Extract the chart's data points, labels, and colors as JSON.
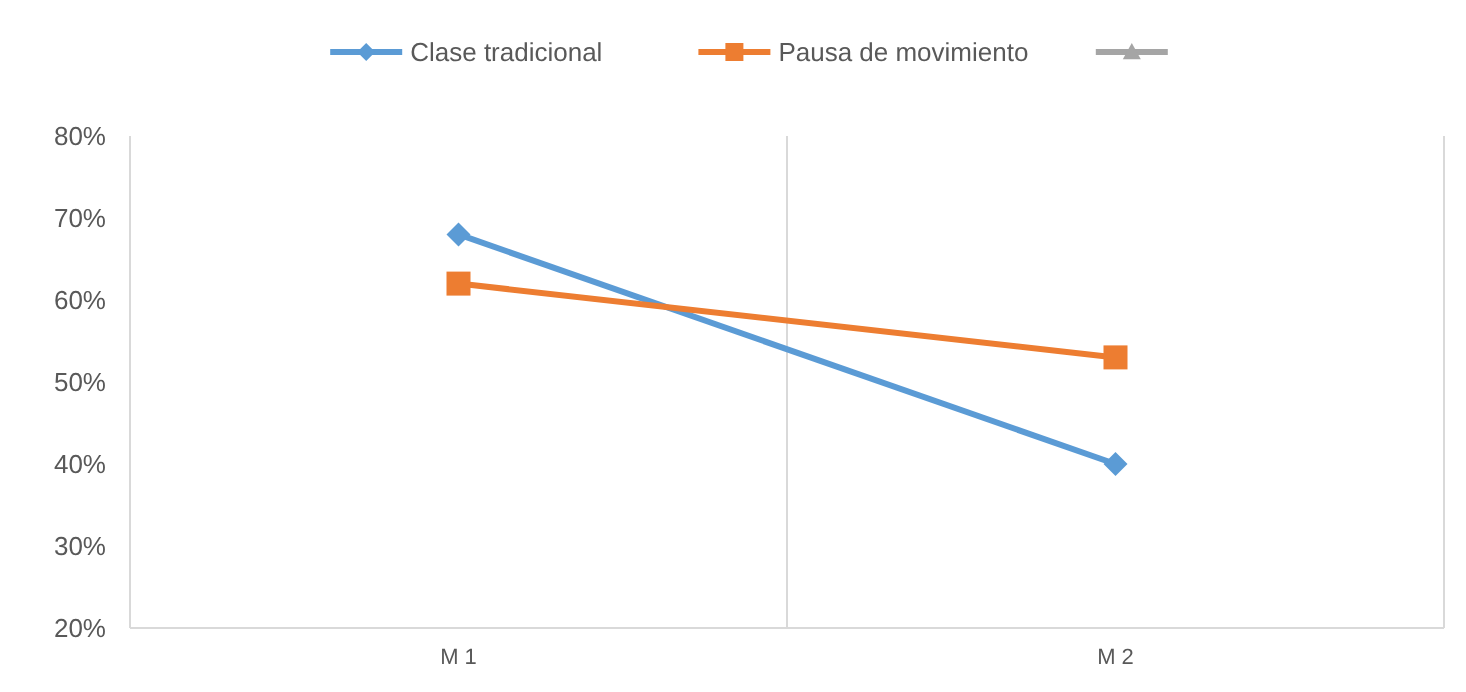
{
  "chart_data": {
    "type": "line",
    "categories": [
      "M 1",
      "M 2"
    ],
    "series": [
      {
        "name": "Clase tradicional",
        "color": "#5b9bd5",
        "values": [
          68,
          40
        ],
        "marker": "diamond"
      },
      {
        "name": "Pausa de movimiento",
        "color": "#ed7d31",
        "values": [
          62,
          53
        ],
        "marker": "square"
      },
      {
        "color": "#a5a5a5",
        "values": [
          null,
          null
        ],
        "marker": "triangle"
      }
    ],
    "ylim": [
      20,
      80
    ],
    "yticks": [
      {
        "value": 20,
        "label": "20%"
      },
      {
        "value": 30,
        "label": "30%"
      },
      {
        "value": 40,
        "label": "40%"
      },
      {
        "value": 50,
        "label": "50%"
      },
      {
        "value": 60,
        "label": "60%"
      },
      {
        "value": 70,
        "label": "70%"
      },
      {
        "value": 80,
        "label": "80%"
      }
    ],
    "grid": "x",
    "legend": "top"
  }
}
